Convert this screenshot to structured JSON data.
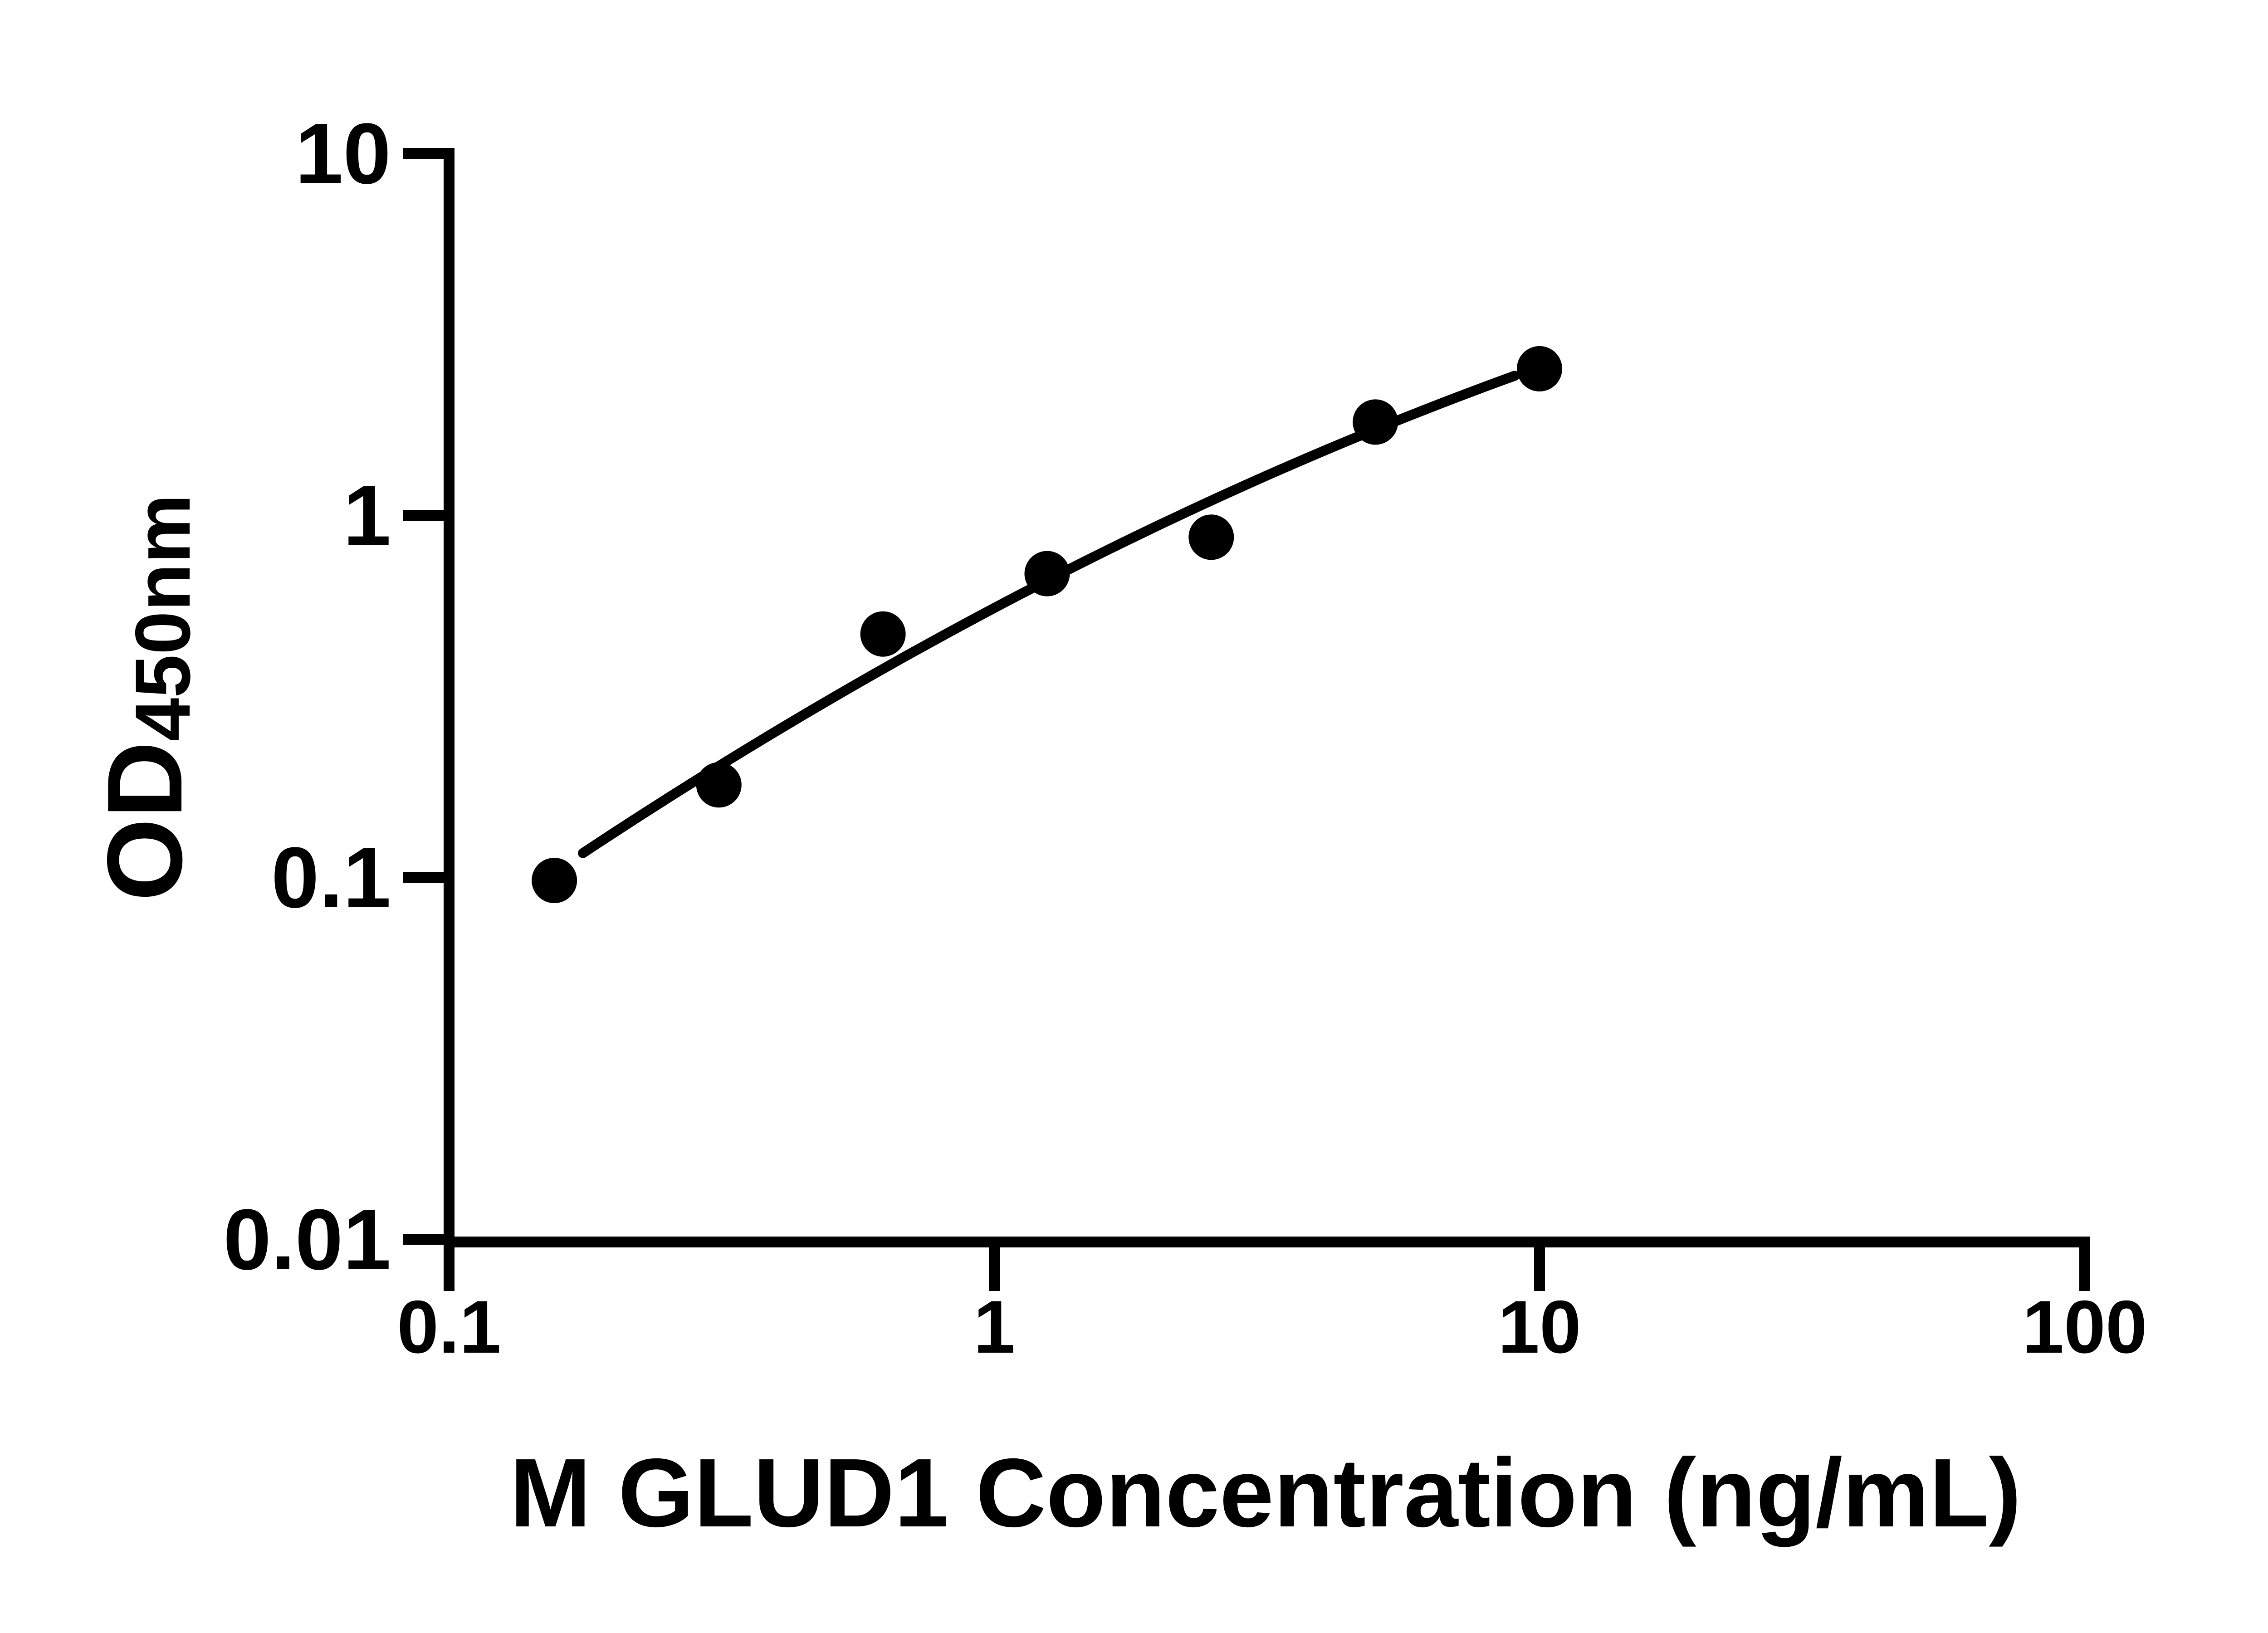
{
  "chart_data": {
    "type": "scatter",
    "title": "",
    "xlabel": "M GLUD1 Concentration (ng/mL)",
    "ylabel_main": "OD",
    "ylabel_sub": "450nm",
    "x_scale": "log10",
    "y_scale": "log10",
    "xlim": [
      0.1,
      100
    ],
    "ylim": [
      0.01,
      10
    ],
    "grid": false,
    "legend": null,
    "axis_color": "#000000",
    "marker_color": "#000000",
    "line_color": "#000000",
    "background_color": "#ffffff",
    "x_ticks": [
      0.1,
      1,
      10,
      100
    ],
    "x_tick_labels": [
      "0.1",
      "1",
      "10",
      "100"
    ],
    "y_ticks": [
      10,
      1,
      0.1,
      0.01
    ],
    "y_tick_labels": [
      "10",
      "1",
      "0.1",
      "0.01"
    ],
    "series": [
      {
        "name": "standard-points",
        "type": "scatter",
        "marker": "filled-circle",
        "points": [
          {
            "x": 0.156,
            "y": 0.098
          },
          {
            "x": 0.3125,
            "y": 0.18
          },
          {
            "x": 0.625,
            "y": 0.47
          },
          {
            "x": 1.25,
            "y": 0.69
          },
          {
            "x": 2.5,
            "y": 0.87
          },
          {
            "x": 5,
            "y": 1.81
          },
          {
            "x": 10,
            "y": 2.54
          }
        ]
      },
      {
        "name": "fitted-curve",
        "type": "line",
        "fit": {
          "model": "loglog-quadratic",
          "equation": "log10(y) = a + b*log10(x) + c*log10(x)^2",
          "a": -0.256,
          "b": 0.798,
          "c": -0.132,
          "x_start": 0.176,
          "x_end": 9.0
        }
      }
    ]
  }
}
